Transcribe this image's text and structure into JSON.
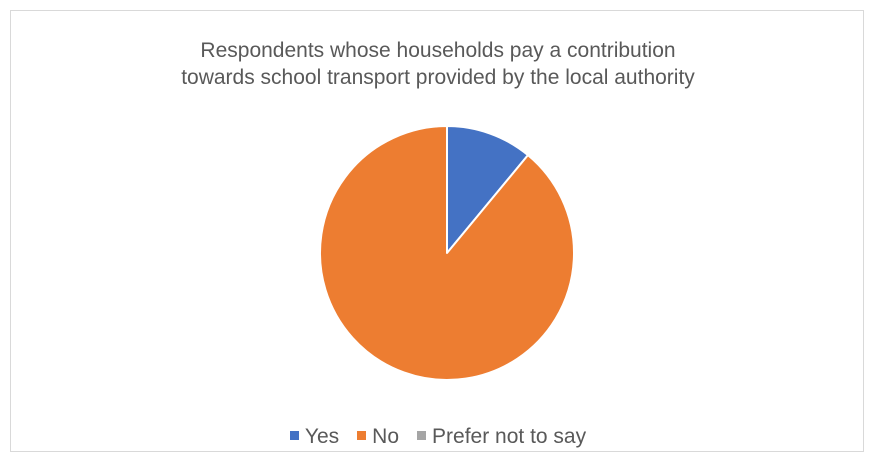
{
  "chart_data": {
    "type": "pie",
    "title": "Respondents whose households pay a contribution towards school transport provided by the local authority",
    "title_lines": [
      "Respondents whose households pay a contribution",
      "towards school transport provided by the local authority"
    ],
    "categories": [
      "Yes",
      "No",
      "Prefer not to say"
    ],
    "values": [
      11,
      89,
      0
    ],
    "colors": [
      "#4472c4",
      "#ed7d31",
      "#a5a5a5"
    ],
    "start_angle_deg": 0,
    "legend_position": "bottom"
  }
}
